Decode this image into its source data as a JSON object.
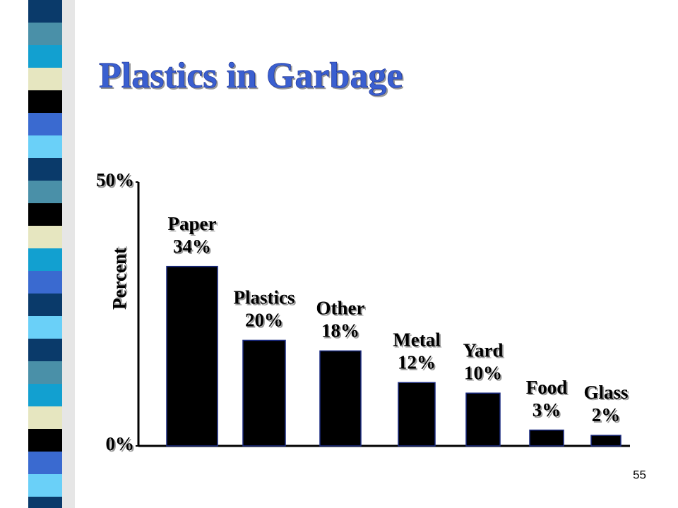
{
  "chart_data": {
    "type": "bar",
    "title": "Plastics in Garbage",
    "y_label": "Percent",
    "categories": [
      "Paper",
      "Plastics",
      "Other",
      "Metal",
      "Yard",
      "Food",
      "Glass"
    ],
    "values": [
      34,
      20,
      18,
      12,
      10,
      3,
      2
    ],
    "value_labels": [
      "34%",
      "20%",
      "18%",
      "12%",
      "10%",
      "3%",
      "2%"
    ],
    "color": "#000000",
    "ylim": [
      0,
      50
    ],
    "yticks": [
      {
        "value": 0,
        "label": "0%"
      },
      {
        "value": 50,
        "label": "50%"
      }
    ]
  },
  "slide_number": "55"
}
